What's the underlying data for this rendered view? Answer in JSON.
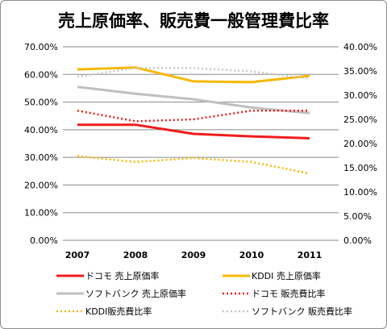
{
  "chart_data": {
    "type": "line",
    "title": "売上原価率、販売費一般管理費比率",
    "categories": [
      "2007",
      "2008",
      "2009",
      "2010",
      "2011"
    ],
    "y_left": {
      "ticks": [
        "0.00%",
        "10.00%",
        "20.00%",
        "30.00%",
        "40.00%",
        "50.00%",
        "60.00%",
        "70.00%"
      ],
      "range": [
        0,
        70
      ]
    },
    "y_right": {
      "ticks": [
        "0.00%",
        "5.00%",
        "10.00%",
        "15.00%",
        "20.00%",
        "25.00%",
        "30.00%",
        "35.00%",
        "40.00%"
      ],
      "range": [
        0,
        40
      ]
    },
    "grid": true,
    "legend_position": "bottom",
    "series": [
      {
        "name": "ドコモ 売上原価率",
        "axis": "left",
        "color": "#ee1c1c",
        "style": "solid",
        "values": [
          41.8,
          41.8,
          38.5,
          37.6,
          36.9
        ]
      },
      {
        "name": "KDDI 売上原価率",
        "axis": "left",
        "color": "#f5b800",
        "style": "solid",
        "values": [
          61.8,
          62.5,
          57.5,
          57.2,
          59.5
        ]
      },
      {
        "name": "ソフトバンク 売上原価率",
        "axis": "left",
        "color": "#bfbfbf",
        "style": "solid",
        "values": [
          55.5,
          53.0,
          51.0,
          48.0,
          46.0
        ]
      },
      {
        "name": "ドコモ 販売費比率",
        "axis": "right",
        "color": "#ee1c1c",
        "style": "dotted",
        "values": [
          26.8,
          24.6,
          25.0,
          26.8,
          26.8
        ]
      },
      {
        "name": "KDDI販売費比率",
        "axis": "right",
        "color": "#f5b800",
        "style": "dotted",
        "values": [
          17.4,
          16.2,
          17.0,
          16.2,
          13.8
        ]
      },
      {
        "name": "ソフトバンク 販売費比率",
        "axis": "right",
        "color": "#c8c8c8",
        "style": "dotted",
        "values": [
          33.8,
          35.6,
          35.6,
          34.9,
          33.4
        ]
      }
    ]
  }
}
